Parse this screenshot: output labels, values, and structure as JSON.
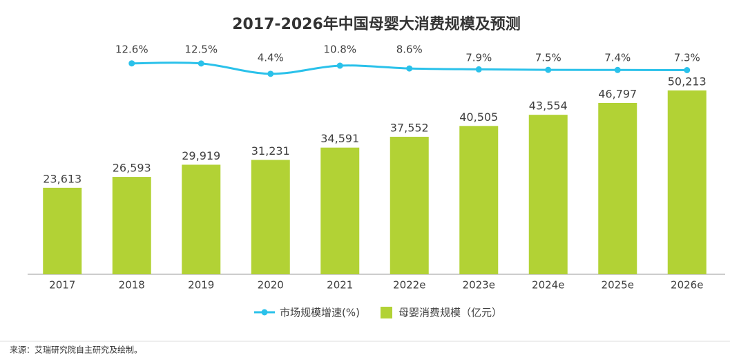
{
  "chart_data": {
    "type": "bar",
    "title": "2017-2026年中国母婴大消费规模及预测",
    "categories": [
      "2017",
      "2018",
      "2019",
      "2020",
      "2021",
      "2022e",
      "2023e",
      "2024e",
      "2025e",
      "2026e"
    ],
    "series": [
      {
        "name": "母婴消费规模（亿元）",
        "type": "bar",
        "color": "#b2d235",
        "values": [
          23613,
          26593,
          29919,
          31231,
          34591,
          37552,
          40505,
          43554,
          46797,
          50213
        ],
        "value_labels": [
          "23,613",
          "26,593",
          "29,919",
          "31,231",
          "34,591",
          "37,552",
          "40,505",
          "43,554",
          "46,797",
          "50,213"
        ]
      },
      {
        "name": "市场规模增速(%)",
        "type": "line",
        "axis": "y2",
        "color": "#2ac1ea",
        "values": [
          null,
          12.6,
          12.5,
          4.4,
          10.8,
          8.6,
          7.9,
          7.5,
          7.4,
          7.3
        ],
        "value_labels": [
          null,
          "12.6%",
          "12.5%",
          "4.4%",
          "10.8%",
          "8.6%",
          "7.9%",
          "7.5%",
          "7.4%",
          "7.3%"
        ]
      }
    ],
    "ylim": [
      0,
      60000
    ],
    "y2lim": [
      0,
      20
    ],
    "source": "来源：艾瑞研究院自主研究及绘制。"
  }
}
